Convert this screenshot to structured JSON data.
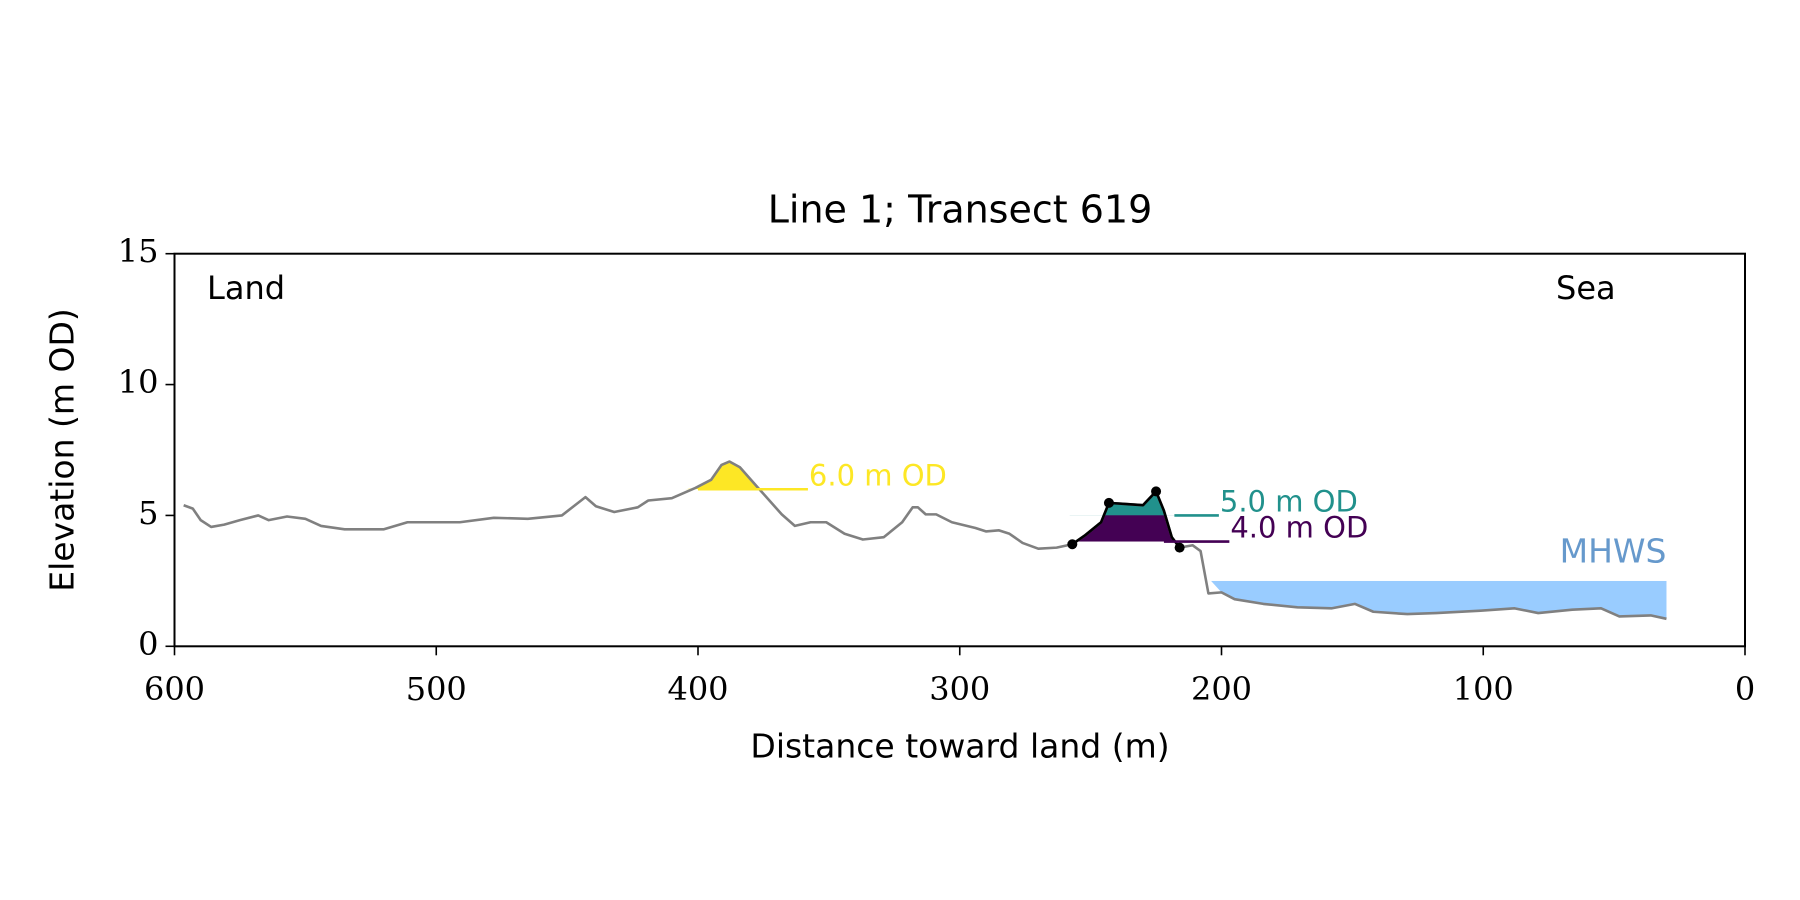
{
  "chart_data": {
    "type": "line",
    "title": "Line 1; Transect 619",
    "xlabel": "Distance toward land (m)",
    "ylabel": "Elevation (m OD)",
    "xlim": [
      600,
      0
    ],
    "ylim": [
      0,
      15
    ],
    "xticks": [
      600,
      500,
      400,
      300,
      200,
      100,
      0
    ],
    "yticks": [
      0,
      5,
      10,
      15
    ],
    "annotations": [
      "Land",
      "Sea"
    ],
    "series": [
      {
        "color": "#808080",
        "x": [
          596.5,
          593,
          590,
          586,
          581,
          575,
          568,
          564,
          557,
          550,
          544,
          535,
          520,
          511,
          502,
          491,
          478,
          465,
          452,
          447,
          443,
          439,
          432,
          423,
          419,
          410,
          401,
          395,
          391,
          388,
          384,
          377,
          368,
          363,
          357,
          351,
          344,
          337,
          329,
          322,
          318,
          316,
          313,
          309,
          303,
          294,
          290,
          285,
          281,
          276,
          270,
          263,
          257,
          252,
          246,
          243,
          237,
          230,
          225,
          222,
          219,
          216,
          211,
          208,
          205,
          200,
          195,
          184,
          171,
          158,
          149,
          142,
          129,
          118,
          101,
          88,
          79,
          66,
          55,
          48,
          36,
          30
        ],
        "values": [
          5.39,
          5.26,
          4.82,
          4.56,
          4.65,
          4.82,
          5.0,
          4.82,
          4.96,
          4.87,
          4.6,
          4.47,
          4.47,
          4.74,
          4.74,
          4.74,
          4.91,
          4.87,
          5.0,
          5.39,
          5.7,
          5.35,
          5.13,
          5.31,
          5.57,
          5.66,
          6.05,
          6.36,
          6.93,
          7.06,
          6.84,
          6.05,
          5.04,
          4.6,
          4.74,
          4.74,
          4.3,
          4.08,
          4.17,
          4.74,
          5.31,
          5.31,
          5.04,
          5.04,
          4.74,
          4.52,
          4.39,
          4.43,
          4.3,
          3.95,
          3.73,
          3.77,
          3.9,
          4.25,
          4.74,
          5.48,
          5.44,
          5.39,
          5.92,
          5.18,
          4.17,
          3.77,
          3.86,
          3.64,
          2.02,
          2.06,
          1.8,
          1.62,
          1.49,
          1.45,
          1.62,
          1.32,
          1.23,
          1.27,
          1.36,
          1.45,
          1.27,
          1.4,
          1.45,
          1.14,
          1.18,
          1.05
        ]
      },
      {
        "color": "#000000",
        "x": [
          257,
          252,
          246,
          243,
          237,
          230,
          225,
          222,
          219,
          216
        ],
        "values": [
          3.9,
          4.25,
          4.74,
          5.48,
          5.44,
          5.39,
          5.92,
          5.18,
          4.17,
          3.77
        ]
      }
    ],
    "points": {
      "color": "#000000",
      "x": [
        257,
        243,
        225,
        216
      ],
      "values": [
        3.9,
        5.48,
        5.92,
        3.77
      ]
    },
    "levels": [
      {
        "label": "6.0 m OD",
        "value": 6.0,
        "color": "#fde725",
        "line": [
          400,
          358
        ],
        "fill": [
          405,
          370
        ]
      },
      {
        "label": "4.0 m OD",
        "value": 4.0,
        "color": "#440154",
        "line": [
          222,
          197
        ],
        "fill": [
          258,
          215
        ]
      },
      {
        "label": "5.0 m OD",
        "value": 5.0,
        "color": "#21918c",
        "line": [
          218,
          201
        ],
        "fill": [
          258,
          215
        ]
      }
    ],
    "mhws": {
      "label": "MHWS",
      "value": 2.5,
      "color": "#99ccff",
      "label_color": "#6699cc",
      "fill": [
        204,
        30
      ]
    }
  }
}
